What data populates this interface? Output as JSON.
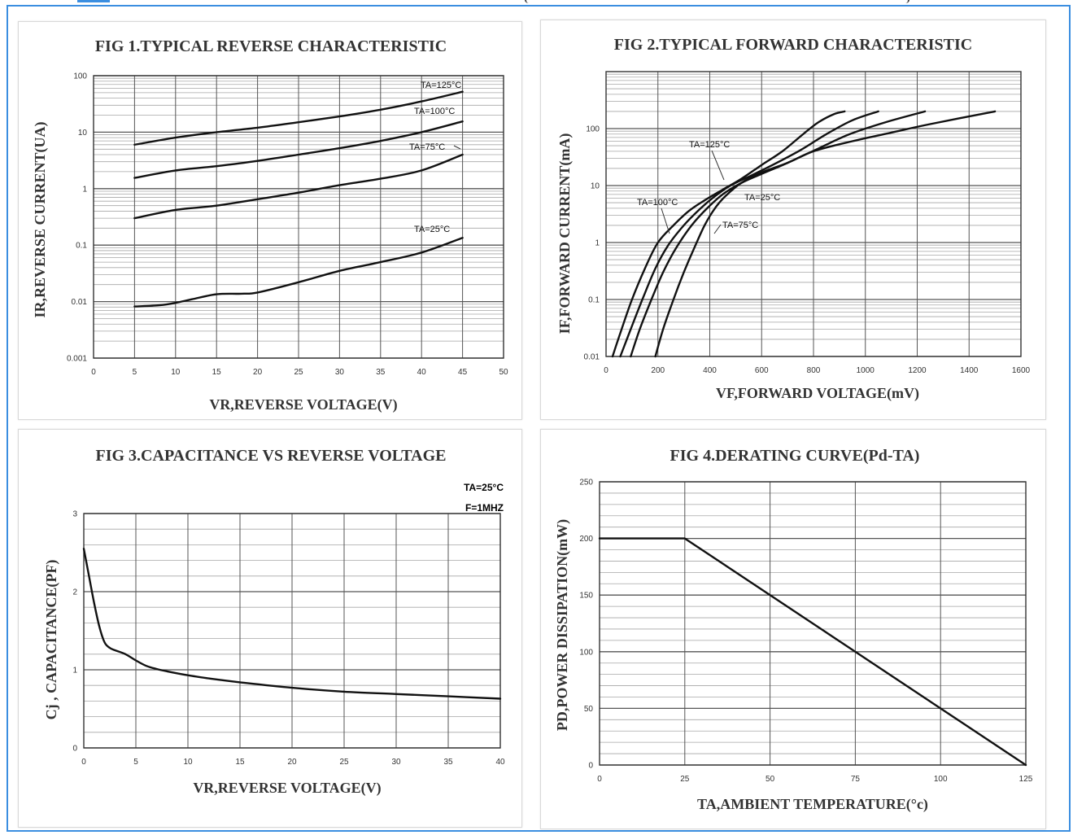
{
  "colors": {
    "frame": "#3b8ee0",
    "curve": "#111111",
    "grid_major": "#555555",
    "grid_minor": "#a6a6a6"
  },
  "chart_data": [
    {
      "id": "fig1",
      "type": "line",
      "title": "FIG 1.TYPICAL REVERSE CHARACTERISTIC",
      "xlabel": "VR,REVERSE VOLTAGE(V)",
      "ylabel": "IR,REVERSE CURRENT(UA)",
      "x_scale": "linear",
      "y_scale": "log",
      "xlim": [
        0,
        50
      ],
      "ylim": [
        0.001,
        100
      ],
      "x_ticks": [
        0,
        5,
        10,
        15,
        20,
        25,
        30,
        35,
        40,
        45,
        50
      ],
      "x_tick_labels": [
        "0",
        "5",
        "10",
        "15",
        "20",
        "25",
        "30",
        "35",
        "40",
        "45",
        "50"
      ],
      "y_ticks": [
        0.001,
        0.01,
        0.1,
        1,
        10,
        100
      ],
      "y_tick_labels": [
        "0.001",
        "0.01",
        "0.1",
        "1",
        "10",
        "100"
      ],
      "grid": true,
      "series": [
        {
          "name": "TA=125°C",
          "x": [
            5,
            10,
            15,
            20,
            25,
            30,
            35,
            40,
            45
          ],
          "y": [
            6,
            8,
            10,
            12,
            15,
            19,
            25,
            35,
            52
          ]
        },
        {
          "name": "TA=100°C",
          "x": [
            5,
            10,
            15,
            20,
            25,
            30,
            35,
            40,
            45
          ],
          "y": [
            1.55,
            2.1,
            2.5,
            3.1,
            4,
            5.2,
            7,
            10,
            15.5
          ]
        },
        {
          "name": "TA=75°C",
          "x": [
            5,
            10,
            15,
            20,
            25,
            30,
            35,
            40,
            45
          ],
          "y": [
            0.3,
            0.42,
            0.5,
            0.65,
            0.85,
            1.15,
            1.5,
            2.1,
            4
          ]
        },
        {
          "name": "TA=25°C",
          "x": [
            5,
            8,
            10,
            12,
            15,
            18,
            20,
            25,
            30,
            35,
            40,
            45
          ],
          "y": [
            0.0082,
            0.0086,
            0.0095,
            0.011,
            0.0135,
            0.0138,
            0.0145,
            0.022,
            0.035,
            0.05,
            0.074,
            0.135
          ]
        }
      ]
    },
    {
      "id": "fig2",
      "type": "line",
      "title": "FIG 2.TYPICAL FORWARD CHARACTERISTIC",
      "xlabel": "VF,FORWARD VOLTAGE(mV)",
      "ylabel": "IF,FORWARD CURRENT(mA)",
      "x_scale": "linear",
      "y_scale": "log",
      "xlim": [
        0,
        1600
      ],
      "ylim": [
        0.01,
        1000
      ],
      "x_ticks": [
        0,
        200,
        400,
        600,
        800,
        1000,
        1200,
        1400,
        1600
      ],
      "x_tick_labels": [
        "0",
        "200",
        "400",
        "600",
        "800",
        "1000",
        "1200",
        "1400",
        "1600"
      ],
      "y_ticks": [
        0.01,
        0.1,
        1,
        10,
        100
      ],
      "y_tick_labels": [
        "0.01",
        "0.1",
        "1",
        "10",
        "100"
      ],
      "grid": true,
      "series": [
        {
          "name": "TA=125°C",
          "x": [
            25,
            60,
            100,
            150,
            200,
            260,
            320,
            380,
            440,
            520,
            600,
            680,
            760,
            820,
            880,
            920
          ],
          "y": [
            0.01,
            0.03,
            0.1,
            0.35,
            1,
            2,
            3.6,
            5.5,
            8,
            13,
            23,
            40,
            80,
            130,
            180,
            200
          ]
        },
        {
          "name": "TA=100°C",
          "x": [
            55,
            95,
            140,
            190,
            240,
            300,
            360,
            420,
            480,
            560,
            650,
            750,
            850,
            950,
            1050
          ],
          "y": [
            0.01,
            0.03,
            0.1,
            0.35,
            0.9,
            2,
            3.8,
            6.5,
            10,
            15,
            24,
            42,
            80,
            140,
            200
          ]
        },
        {
          "name": "TA=75°C",
          "x": [
            95,
            130,
            175,
            220,
            270,
            330,
            390,
            450,
            520,
            600,
            700,
            820,
            940,
            1080,
            1230
          ],
          "y": [
            0.01,
            0.03,
            0.1,
            0.3,
            0.8,
            2,
            4,
            7,
            11,
            16,
            25,
            45,
            80,
            130,
            200
          ]
        },
        {
          "name": "TA=25°C",
          "x": [
            190,
            220,
            260,
            300,
            340,
            380,
            420,
            460,
            520,
            600,
            700,
            800,
            950,
            1100,
            1250,
            1500
          ],
          "y": [
            0.01,
            0.03,
            0.1,
            0.3,
            0.8,
            2,
            4,
            6.5,
            11,
            17,
            25,
            40,
            60,
            85,
            120,
            200
          ]
        }
      ]
    },
    {
      "id": "fig3",
      "type": "line",
      "title": "FIG 3.CAPACITANCE VS REVERSE VOLTAGE",
      "xlabel": "VR,REVERSE VOLTAGE(V)",
      "ylabel": "Cj , CAPACITANCE(PF)",
      "x_scale": "linear",
      "y_scale": "linear",
      "xlim": [
        0,
        40
      ],
      "ylim": [
        0,
        3
      ],
      "x_ticks": [
        0,
        5,
        10,
        15,
        20,
        25,
        30,
        35,
        40
      ],
      "x_tick_labels": [
        "0",
        "5",
        "10",
        "15",
        "20",
        "25",
        "30",
        "35",
        "40"
      ],
      "y_ticks": [
        0,
        1,
        2,
        3
      ],
      "y_tick_labels": [
        "0",
        "1",
        "2",
        "3"
      ],
      "grid": true,
      "annotations": [
        "TA=25°C",
        "F=1MHZ"
      ],
      "series": [
        {
          "name": "",
          "x": [
            0,
            0.5,
            1,
            1.5,
            2,
            2.5,
            3,
            4,
            5,
            6,
            7,
            8,
            10,
            12,
            15,
            20,
            25,
            30,
            35,
            40
          ],
          "y": [
            2.55,
            2.2,
            1.85,
            1.55,
            1.35,
            1.28,
            1.25,
            1.2,
            1.12,
            1.05,
            1.01,
            0.98,
            0.93,
            0.89,
            0.84,
            0.77,
            0.72,
            0.69,
            0.66,
            0.63
          ]
        }
      ]
    },
    {
      "id": "fig4",
      "type": "line",
      "title": "FIG 4.DERATING CURVE(Pd-TA)",
      "xlabel": "TA,AMBIENT TEMPERATURE(°c)",
      "ylabel": "PD,POWER DISSIPATION(mW)",
      "x_scale": "linear",
      "y_scale": "linear",
      "xlim": [
        0,
        125
      ],
      "ylim": [
        0,
        250
      ],
      "x_ticks": [
        0,
        25,
        50,
        75,
        100,
        125
      ],
      "x_tick_labels": [
        "0",
        "25",
        "50",
        "75",
        "100",
        "125"
      ],
      "y_ticks": [
        0,
        50,
        100,
        150,
        200,
        250
      ],
      "y_tick_labels": [
        "0",
        "50",
        "100",
        "150",
        "200",
        "250"
      ],
      "grid": true,
      "series": [
        {
          "name": "",
          "x": [
            0,
            25,
            125
          ],
          "y": [
            200,
            200,
            0
          ]
        }
      ]
    }
  ]
}
